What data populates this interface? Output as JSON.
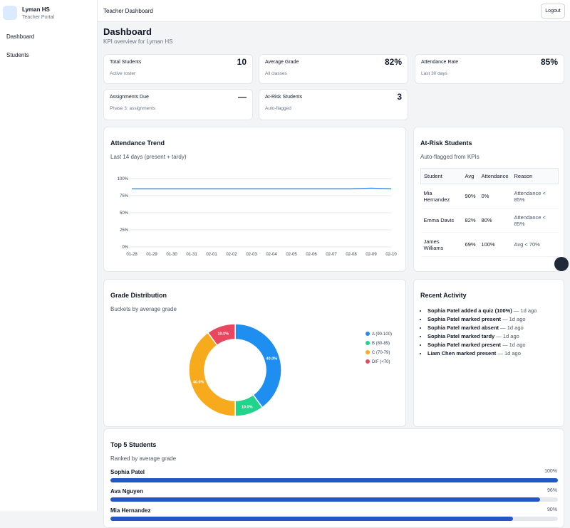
{
  "sidebar": {
    "brand": "Lyman HS",
    "subtitle": "Teacher Portal",
    "nav": [
      "Dashboard",
      "Students"
    ]
  },
  "topbar": {
    "title": "Teacher Dashboard",
    "logout": "Logout"
  },
  "header": {
    "title": "Dashboard",
    "subtitle": "KPI overview for Lyman HS"
  },
  "kpis": [
    {
      "label": "Total Students",
      "value": "10",
      "note": "Active roster"
    },
    {
      "label": "Average Grade",
      "value": "82%",
      "note": "All classes"
    },
    {
      "label": "Attendance Rate",
      "value": "85%",
      "note": "Last 30 days"
    },
    {
      "label": "Assignments Due",
      "value": "—",
      "note": "Phase 3: assignments"
    },
    {
      "label": "At-Risk Students",
      "value": "3",
      "note": "Auto-flagged"
    }
  ],
  "attendance_trend": {
    "title": "Attendance Trend",
    "subtitle": "Last 14 days (present + tardy)",
    "chart": {
      "type": "line",
      "x": [
        "01-28",
        "01-29",
        "01-30",
        "01-31",
        "02-01",
        "02-02",
        "02-03",
        "02-04",
        "02-05",
        "02-06",
        "02-07",
        "02-08",
        "02-09",
        "02-10"
      ],
      "values": [
        85,
        85,
        85,
        85,
        85,
        85,
        85,
        85,
        85,
        85,
        85,
        85,
        86,
        85
      ],
      "color": "#3b8ff0",
      "ylim": [
        0,
        100
      ],
      "yticks": [
        {
          "value": 0,
          "label": "0%"
        },
        {
          "value": 25,
          "label": "25%"
        },
        {
          "value": 50,
          "label": "50%"
        },
        {
          "value": 75,
          "label": "75%"
        },
        {
          "value": 100,
          "label": "100%"
        }
      ],
      "grid": true
    }
  },
  "at_risk": {
    "title": "At-Risk Students",
    "subtitle": "Auto-flagged from KPIs",
    "columns": [
      "Student",
      "Avg",
      "Attendance",
      "Reason"
    ],
    "rows": [
      [
        "Mia Hernandez",
        "90%",
        "0%",
        "Attendance < 85%"
      ],
      [
        "Emma Davis",
        "82%",
        "80%",
        "Attendance < 85%"
      ],
      [
        "James Williams",
        "69%",
        "100%",
        "Avg < 70%"
      ]
    ]
  },
  "grade_distribution": {
    "title": "Grade Distribution",
    "subtitle": "Buckets by average grade",
    "chart": {
      "type": "pie",
      "categories": [
        "A (90-100)",
        "B (80-89)",
        "C (70-79)",
        "D/F (<70)"
      ],
      "values": [
        40,
        10,
        40,
        10
      ],
      "value_labels": [
        "40.0%",
        "10.0%",
        "40.0%",
        "10.0%"
      ],
      "colors": [
        "#1e8ff0",
        "#22d38b",
        "#f6aa1c",
        "#e8475f"
      ],
      "legend": "right"
    }
  },
  "recent_activity": {
    "title": "Recent Activity",
    "items": [
      {
        "text": "Sophia Patel added a quiz (100%)",
        "time": "— 1d ago"
      },
      {
        "text": "Sophia Patel marked present",
        "time": "— 1d ago"
      },
      {
        "text": "Sophia Patel marked absent",
        "time": "— 1d ago"
      },
      {
        "text": "Sophia Patel marked tardy",
        "time": "— 1d ago"
      },
      {
        "text": "Sophia Patel marked present",
        "time": "— 1d ago"
      },
      {
        "text": "Liam Chen marked present",
        "time": "— 1d ago"
      }
    ]
  },
  "top_students": {
    "title": "Top 5 Students",
    "subtitle": "Ranked by average grade",
    "chart": {
      "type": "bar",
      "categories": [
        "Sophia Patel",
        "Ava Nguyen",
        "Mia Hernandez"
      ],
      "values": [
        100,
        96,
        90
      ],
      "value_labels": [
        "100%",
        "96%",
        "90%"
      ],
      "xlim": [
        0,
        100
      ],
      "color": "#2456c8"
    }
  }
}
